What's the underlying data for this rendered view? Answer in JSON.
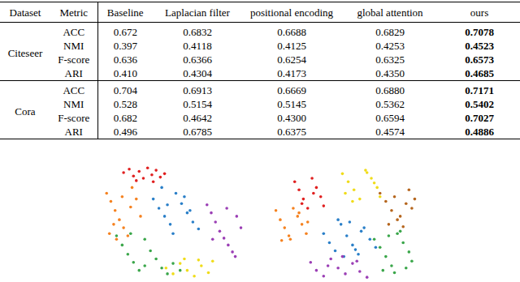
{
  "table": {
    "header": [
      "Dataset",
      "Metric",
      "Baseline",
      "Laplacian filter",
      "positional encoding",
      "global attention",
      "ours"
    ],
    "groups": [
      {
        "dataset": "Citeseer",
        "rows": [
          {
            "metric": "ACC",
            "values": [
              "0.672",
              "0.6832",
              "0.6688",
              "0.6829",
              "0.7078"
            ]
          },
          {
            "metric": "NMI",
            "values": [
              "0.397",
              "0.4118",
              "0.4125",
              "0.4253",
              "0.4523"
            ]
          },
          {
            "metric": "F-score",
            "values": [
              "0.636",
              "0.6366",
              "0.6254",
              "0.6325",
              "0.6573"
            ]
          },
          {
            "metric": "ARI",
            "values": [
              "0.410",
              "0.4304",
              "0.4173",
              "0.4350",
              "0.4685"
            ]
          }
        ]
      },
      {
        "dataset": "Cora",
        "rows": [
          {
            "metric": "ACC",
            "values": [
              "0.704",
              "0.6913",
              "0.6669",
              "0.6880",
              "0.7171"
            ]
          },
          {
            "metric": "NMI",
            "values": [
              "0.528",
              "0.5154",
              "0.5145",
              "0.5362",
              "0.5402"
            ]
          },
          {
            "metric": "F-score",
            "values": [
              "0.682",
              "0.4642",
              "0.4300",
              "0.6594",
              "0.7027"
            ]
          },
          {
            "metric": "ARI",
            "values": [
              "0.496",
              "0.6785",
              "0.6375",
              "0.4574",
              "0.4886"
            ]
          }
        ]
      }
    ]
  },
  "chart_data": [
    {
      "type": "scatter",
      "tick_labels": false,
      "xlim": [
        0,
        100
      ],
      "ylim": [
        0,
        100
      ],
      "series": [
        {
          "color": "#e02020",
          "x": [
            15,
            19,
            22,
            26,
            29,
            32,
            35,
            38,
            41,
            44,
            24,
            36
          ],
          "values": [
            93,
            96,
            90,
            94,
            88,
            97,
            91,
            95,
            89,
            92,
            86,
            85
          ]
        },
        {
          "color": "#f58220",
          "x": [
            3,
            6,
            9,
            12,
            15,
            18,
            21,
            24,
            27,
            5,
            10,
            20,
            14,
            8
          ],
          "values": [
            75,
            68,
            60,
            52,
            45,
            38,
            80,
            70,
            55,
            40,
            35,
            63,
            72,
            48
          ]
        },
        {
          "color": "#2a7fc8",
          "x": [
            36,
            40,
            44,
            48,
            52,
            56,
            60,
            64,
            68,
            42,
            50,
            58,
            46,
            62
          ],
          "values": [
            70,
            62,
            55,
            48,
            75,
            66,
            58,
            50,
            44,
            80,
            40,
            72,
            65,
            60
          ]
        },
        {
          "color": "#9b3fb5",
          "x": [
            74,
            77,
            80,
            83,
            86,
            89,
            92,
            95,
            98,
            78,
            88,
            94
          ],
          "values": [
            65,
            58,
            50,
            42,
            36,
            30,
            24,
            55,
            45,
            35,
            62,
            20
          ]
        },
        {
          "color": "#3aa64a",
          "x": [
            10,
            14,
            18,
            22,
            26,
            30,
            34,
            38,
            42,
            46,
            50,
            55,
            20,
            30
          ],
          "values": [
            38,
            30,
            22,
            15,
            8,
            35,
            25,
            18,
            10,
            5,
            14,
            8,
            40,
            12
          ]
        },
        {
          "color": "#f0dc1a",
          "x": [
            45,
            50,
            55,
            60,
            65,
            70,
            75,
            78,
            58,
            68
          ],
          "values": [
            10,
            5,
            14,
            8,
            3,
            12,
            6,
            16,
            18,
            17
          ]
        }
      ]
    },
    {
      "type": "scatter",
      "tick_labels": false,
      "xlim": [
        0,
        100
      ],
      "ylim": [
        0,
        100
      ],
      "series": [
        {
          "color": "#e02020",
          "x": [
            15,
            18,
            21,
            24,
            27,
            30,
            33,
            35,
            20,
            28
          ],
          "values": [
            85,
            78,
            70,
            62,
            88,
            80,
            72,
            64,
            66,
            75
          ]
        },
        {
          "color": "#f0dc1a",
          "x": [
            48,
            52,
            56,
            60,
            64,
            68,
            72,
            74,
            55,
            65,
            50,
            70
          ],
          "values": [
            92,
            85,
            78,
            70,
            95,
            88,
            80,
            72,
            68,
            93,
            75,
            84
          ]
        },
        {
          "color": "#b5651d",
          "x": [
            74,
            78,
            82,
            86,
            90,
            94,
            98,
            80,
            88,
            96,
            84,
            92
          ],
          "values": [
            75,
            68,
            60,
            52,
            46,
            78,
            70,
            48,
            55,
            62,
            72,
            66
          ]
        },
        {
          "color": "#f58220",
          "x": [
            2,
            5,
            8,
            11,
            14,
            17,
            20,
            23,
            6,
            12,
            18,
            24
          ],
          "values": [
            60,
            52,
            45,
            38,
            62,
            55,
            48,
            40,
            34,
            35,
            58,
            50
          ]
        },
        {
          "color": "#2a7fc8",
          "x": [
            35,
            39,
            43,
            47,
            51,
            55,
            59,
            63,
            67,
            71,
            45,
            53,
            61,
            49,
            57
          ],
          "values": [
            40,
            32,
            25,
            48,
            38,
            30,
            22,
            45,
            35,
            28,
            52,
            50,
            42,
            20,
            26
          ]
        },
        {
          "color": "#3aa64a",
          "x": [
            70,
            74,
            78,
            82,
            86,
            90,
            94,
            96,
            76,
            84,
            92,
            80,
            88
          ],
          "values": [
            35,
            28,
            20,
            12,
            40,
            32,
            24,
            16,
            8,
            6,
            10,
            38,
            42
          ]
        },
        {
          "color": "#9b3fb5",
          "x": [
            26,
            30,
            35,
            40,
            45,
            50,
            55,
            60,
            65,
            38,
            48,
            58
          ],
          "values": [
            15,
            8,
            3,
            18,
            10,
            5,
            14,
            7,
            2,
            12,
            20,
            16
          ]
        }
      ]
    }
  ]
}
